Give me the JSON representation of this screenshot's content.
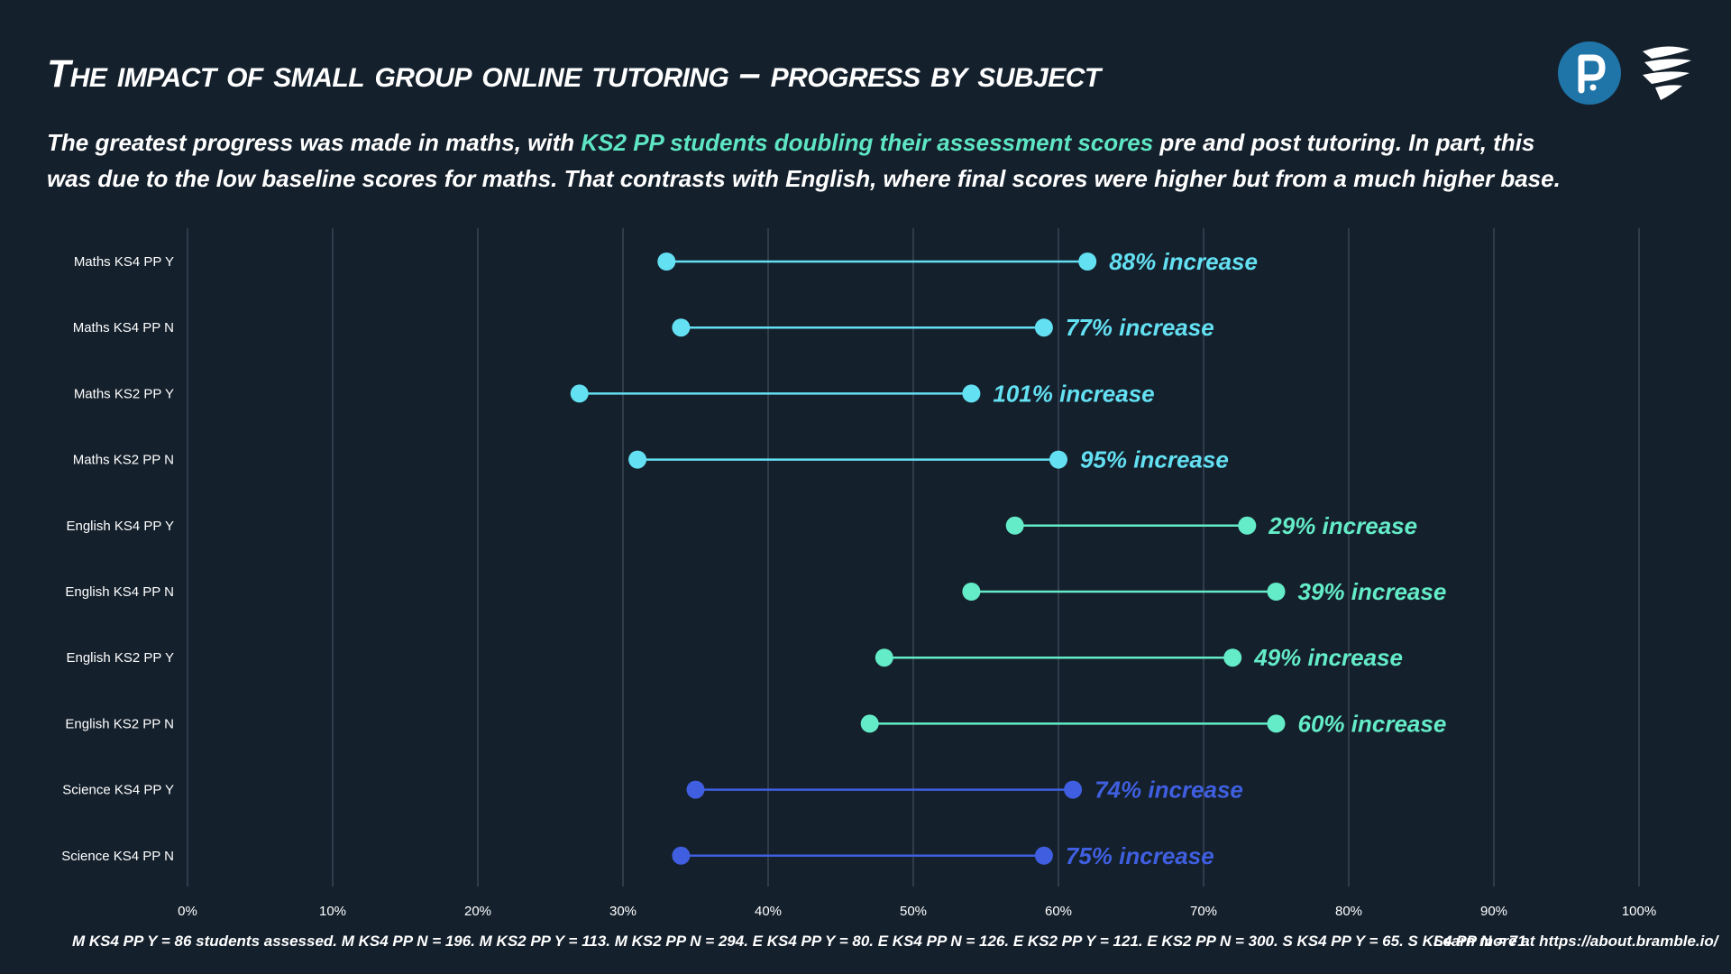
{
  "title": "The impact of small group online tutoring – progress by subject",
  "subtitle": {
    "part1": "The greatest progress was made in maths, with ",
    "highlight": "KS2 PP students doubling their assessment scores",
    "part2": " pre and post tutoring. In part, this was due to the low baseline scores for maths. That contrasts with English, where final scores were higher but from a much higher base."
  },
  "logos": [
    "pearson-logo",
    "bramble-logo"
  ],
  "colors": {
    "background": "#14202c",
    "maths": "#63e0f2",
    "english": "#63ecc7",
    "science": "#3f5fe0",
    "highlight": "#5ee6c4",
    "grid": "#3a4654"
  },
  "chart_data": {
    "type": "dumbbell",
    "x_ticks": [
      "0%",
      "10%",
      "20%",
      "30%",
      "40%",
      "50%",
      "60%",
      "70%",
      "80%",
      "90%",
      "100%"
    ],
    "xlim": [
      0,
      100
    ],
    "grid": true,
    "rows": [
      {
        "category": "Maths KS4 PP Y",
        "group": "maths",
        "start": 33,
        "end": 62,
        "label": "88% increase"
      },
      {
        "category": "Maths KS4 PP N",
        "group": "maths",
        "start": 34,
        "end": 59,
        "label": "77% increase"
      },
      {
        "category": "Maths KS2 PP Y",
        "group": "maths",
        "start": 27,
        "end": 54,
        "label": "101% increase"
      },
      {
        "category": "Maths KS2 PP N",
        "group": "maths",
        "start": 31,
        "end": 60,
        "label": "95% increase"
      },
      {
        "category": "English KS4 PP Y",
        "group": "english",
        "start": 57,
        "end": 73,
        "label": "29% increase"
      },
      {
        "category": "English KS4 PP N",
        "group": "english",
        "start": 54,
        "end": 75,
        "label": "39% increase"
      },
      {
        "category": "English KS2 PP Y",
        "group": "english",
        "start": 48,
        "end": 72,
        "label": "49% increase"
      },
      {
        "category": "English KS2 PP N",
        "group": "english",
        "start": 47,
        "end": 75,
        "label": "60% increase"
      },
      {
        "category": "Science KS4 PP Y",
        "group": "science",
        "start": 35,
        "end": 61,
        "label": "74% increase"
      },
      {
        "category": "Science KS4 PP N",
        "group": "science",
        "start": 34,
        "end": 59,
        "label": "75% increase"
      }
    ]
  },
  "footnote": "M KS4 PP Y = 86 students assessed. M KS4 PP N = 196. M KS2 PP Y = 113. M KS2 PP N = 294. E KS4 PP Y = 80. E KS4 PP N = 126. E KS2 PP Y = 121. E KS2 PP N = 300. S KS4 PP Y = 65. S KS4 PP N = 71.",
  "learn_more": "Learn more at https://about.bramble.io/"
}
